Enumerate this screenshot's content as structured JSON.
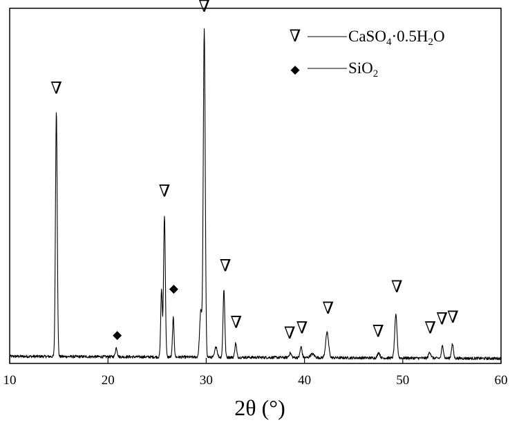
{
  "chart_data": {
    "type": "line",
    "title": "",
    "xlabel": "2θ (°)",
    "ylabel": "",
    "xlim": [
      10,
      60
    ],
    "x_ticks": [
      10,
      20,
      30,
      40,
      50,
      60
    ],
    "grid": false,
    "legend_position": "top-right",
    "legend": [
      {
        "marker": "triangle-down-open-icon",
        "symbol": "∇",
        "label_parts": [
          "CaSO",
          "4",
          "·0.5H",
          "2",
          "O"
        ]
      },
      {
        "marker": "diamond-filled-icon",
        "symbol": "◆",
        "label_parts": [
          "SiO",
          "2"
        ]
      }
    ],
    "series": [
      {
        "name": "",
        "color": "#000000",
        "baseline": 0.02,
        "noise": 0.004,
        "peaks": [
          {
            "x": 14.75,
            "h": 0.69,
            "w": 0.09
          },
          {
            "x": 20.85,
            "h": 0.025,
            "w": 0.1
          },
          {
            "x": 25.45,
            "h": 0.19,
            "w": 0.08
          },
          {
            "x": 25.75,
            "h": 0.4,
            "w": 0.09
          },
          {
            "x": 26.65,
            "h": 0.11,
            "w": 0.08
          },
          {
            "x": 29.45,
            "h": 0.13,
            "w": 0.12
          },
          {
            "x": 29.8,
            "h": 0.92,
            "w": 0.1
          },
          {
            "x": 31.0,
            "h": 0.03,
            "w": 0.12
          },
          {
            "x": 31.8,
            "h": 0.19,
            "w": 0.09
          },
          {
            "x": 33.0,
            "h": 0.04,
            "w": 0.09
          },
          {
            "x": 38.55,
            "h": 0.012,
            "w": 0.12
          },
          {
            "x": 39.65,
            "h": 0.03,
            "w": 0.1
          },
          {
            "x": 40.8,
            "h": 0.01,
            "w": 0.2
          },
          {
            "x": 42.3,
            "h": 0.07,
            "w": 0.15
          },
          {
            "x": 47.55,
            "h": 0.015,
            "w": 0.12
          },
          {
            "x": 49.3,
            "h": 0.12,
            "w": 0.12
          },
          {
            "x": 52.75,
            "h": 0.017,
            "w": 0.12
          },
          {
            "x": 54.05,
            "h": 0.035,
            "w": 0.1
          },
          {
            "x": 55.05,
            "h": 0.04,
            "w": 0.1
          }
        ]
      }
    ],
    "annotations": [
      {
        "symbol": "∇",
        "phase": "CaSO4·0.5H2O",
        "x": 14.75,
        "y": 0.76
      },
      {
        "symbol": "◆",
        "phase": "SiO2",
        "x": 20.95,
        "y": 0.07
      },
      {
        "symbol": "∇",
        "phase": "CaSO4·0.5H2O",
        "x": 25.75,
        "y": 0.47
      },
      {
        "symbol": "◆",
        "phase": "SiO2",
        "x": 26.7,
        "y": 0.2
      },
      {
        "symbol": "∇",
        "phase": "CaSO4·0.5H2O",
        "x": 29.8,
        "y": 0.99
      },
      {
        "symbol": "∇",
        "phase": "CaSO4·0.5H2O",
        "x": 31.95,
        "y": 0.26
      },
      {
        "symbol": "∇",
        "phase": "CaSO4·0.5H2O",
        "x": 33.05,
        "y": 0.1
      },
      {
        "symbol": "∇",
        "phase": "CaSO4·0.5H2O",
        "x": 38.5,
        "y": 0.07
      },
      {
        "symbol": "∇",
        "phase": "CaSO4·0.5H2O",
        "x": 39.75,
        "y": 0.085
      },
      {
        "symbol": "∇",
        "phase": "CaSO4·0.5H2O",
        "x": 42.4,
        "y": 0.14
      },
      {
        "symbol": "∇",
        "phase": "CaSO4·0.5H2O",
        "x": 47.5,
        "y": 0.075
      },
      {
        "symbol": "∇",
        "phase": "CaSO4·0.5H2O",
        "x": 49.4,
        "y": 0.2
      },
      {
        "symbol": "∇",
        "phase": "CaSO4·0.5H2O",
        "x": 52.8,
        "y": 0.085
      },
      {
        "symbol": "∇",
        "phase": "CaSO4·0.5H2O",
        "x": 54.0,
        "y": 0.11
      },
      {
        "symbol": "∇",
        "phase": "CaSO4·0.5H2O",
        "x": 55.1,
        "y": 0.115
      }
    ]
  }
}
